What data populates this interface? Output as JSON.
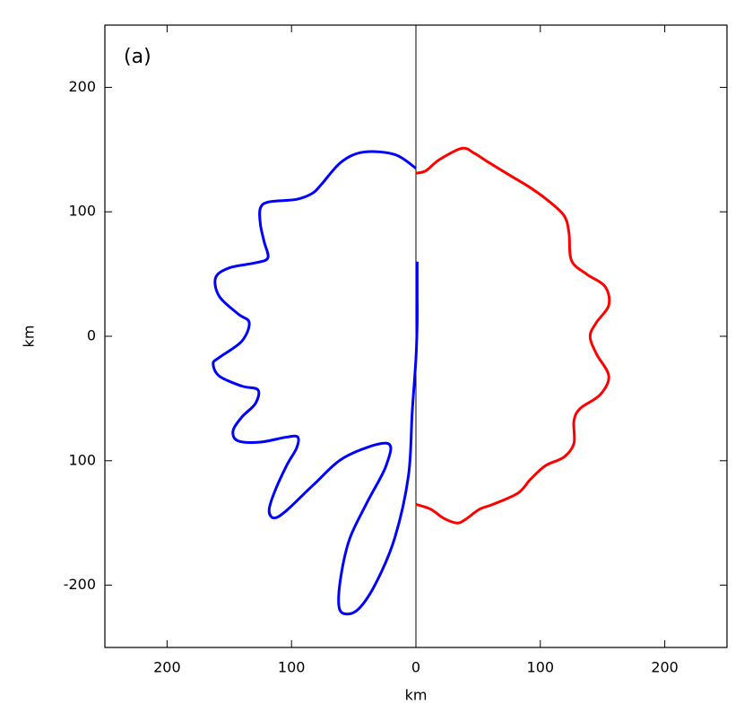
{
  "chart_data": {
    "type": "line",
    "annotation": "(a)",
    "x_label": "km",
    "y_label": "km",
    "xlim": [
      -250,
      250
    ],
    "ylim": [
      -250,
      250
    ],
    "xticks": [
      {
        "value": -200,
        "label": "200"
      },
      {
        "value": -100,
        "label": "100"
      },
      0,
      100,
      200
    ],
    "yticks": [
      -200,
      {
        "value": -100,
        "label": "100"
      },
      0,
      100,
      200
    ],
    "series": [
      {
        "color": "#0000ff",
        "x": [
          0,
          -17,
          -42,
          -60,
          -76,
          -83,
          -96,
          -118,
          -125,
          -125,
          -122,
          -119,
          -129,
          -150,
          -161,
          -158,
          -143,
          -134,
          -140,
          -158,
          -163,
          -158,
          -140,
          -127,
          -129,
          -140,
          -147,
          -143,
          -125,
          -104,
          -95,
          -96,
          -104,
          -114,
          -118,
          -114,
          -104,
          -82,
          -57,
          -23,
          -24,
          -39,
          -53,
          -60,
          -62,
          -57,
          -46,
          -32,
          -17,
          -6,
          -3,
          0,
          1,
          1,
          1
        ],
        "values": [
          135,
          146,
          148,
          140,
          122,
          115,
          110,
          108,
          103,
          90,
          76,
          63,
          59,
          55,
          47,
          32,
          18,
          11,
          -4,
          -17,
          -22,
          -32,
          -40,
          -43,
          -54,
          -65,
          -76,
          -84,
          -85,
          -81,
          -81,
          -90,
          -104,
          -126,
          -140,
          -146,
          -140,
          -119,
          -97,
          -86,
          -104,
          -133,
          -162,
          -191,
          -216,
          -223,
          -219,
          -198,
          -162,
          -112,
          -61,
          -18,
          11,
          32,
          60
        ]
      },
      {
        "color": "#ff0000",
        "x": [
          0,
          8,
          19,
          37,
          47,
          58,
          76,
          91,
          105,
          119,
          123,
          125,
          137,
          152,
          155,
          145,
          140,
          145,
          155,
          148,
          132,
          127,
          127,
          119,
          104,
          92,
          82,
          62,
          51,
          40,
          33,
          22,
          12,
          0
        ],
        "values": [
          131,
          133,
          142,
          151,
          147,
          140,
          129,
          120,
          110,
          97,
          83,
          61,
          50,
          40,
          25,
          11,
          0,
          -14,
          -32,
          -47,
          -58,
          -68,
          -86,
          -97,
          -104,
          -115,
          -126,
          -135,
          -139,
          -147,
          -150,
          -146,
          -139,
          -135
        ]
      }
    ]
  }
}
